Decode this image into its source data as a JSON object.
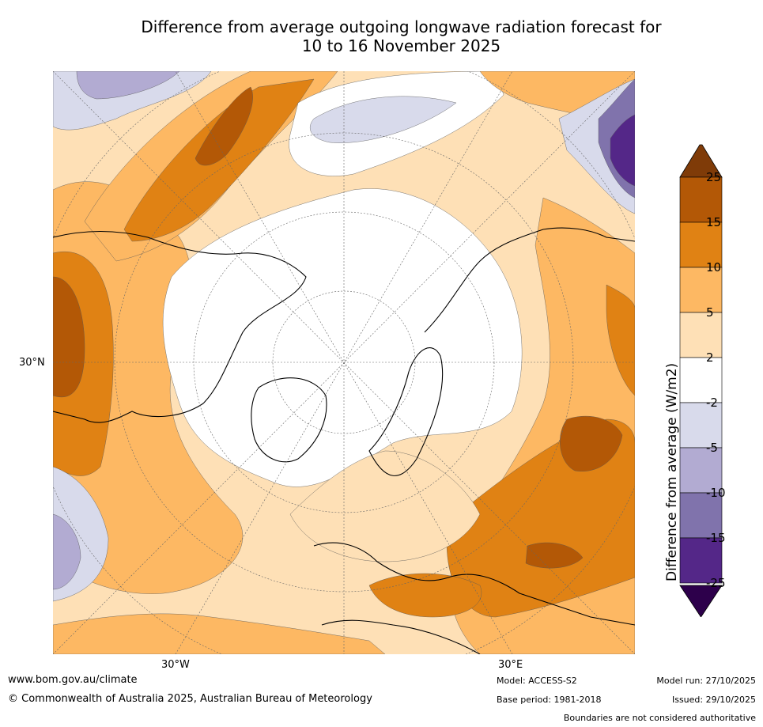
{
  "title_line1": "Difference from average outgoing longwave radiation forecast for",
  "title_line2": "10 to 16 November 2025",
  "map": {
    "lat_label": "30°N",
    "lon_labels": [
      "30°W",
      "30°E"
    ]
  },
  "colorbar": {
    "label": "Difference from average (W/m2)",
    "ticks": [
      "25",
      "15",
      "10",
      "5",
      "2",
      "-2",
      "-5",
      "-10",
      "-15",
      "-25"
    ],
    "bins": [
      {
        "range": "15 to 25",
        "color": "#b35806"
      },
      {
        "range": "10 to 15",
        "color": "#e08214"
      },
      {
        "range": "5 to 10",
        "color": "#fdb863"
      },
      {
        "range": "2 to 5",
        "color": "#fee0b6"
      },
      {
        "range": "-2 to 2",
        "color": "#ffffff"
      },
      {
        "range": "-5 to -2",
        "color": "#d8daeb"
      },
      {
        "range": "-10 to -5",
        "color": "#b2abd2"
      },
      {
        "range": "-15 to -10",
        "color": "#8073ac"
      },
      {
        "range": "-25 to -15",
        "color": "#542788"
      }
    ],
    "over_color": "#7f3b08",
    "under_color": "#2d004b"
  },
  "footer": {
    "website": "www.bom.gov.au/climate",
    "copyright": "© Commonwealth of Australia 2025, Australian Bureau of Meteorology",
    "model": "Model: ACCESS-S2",
    "base_period": "Base period: 1981-2018",
    "model_run": "Model run: 27/10/2025",
    "issued": "Issued: 29/10/2025",
    "disclaimer": "Boundaries are not considered authoritative"
  }
}
